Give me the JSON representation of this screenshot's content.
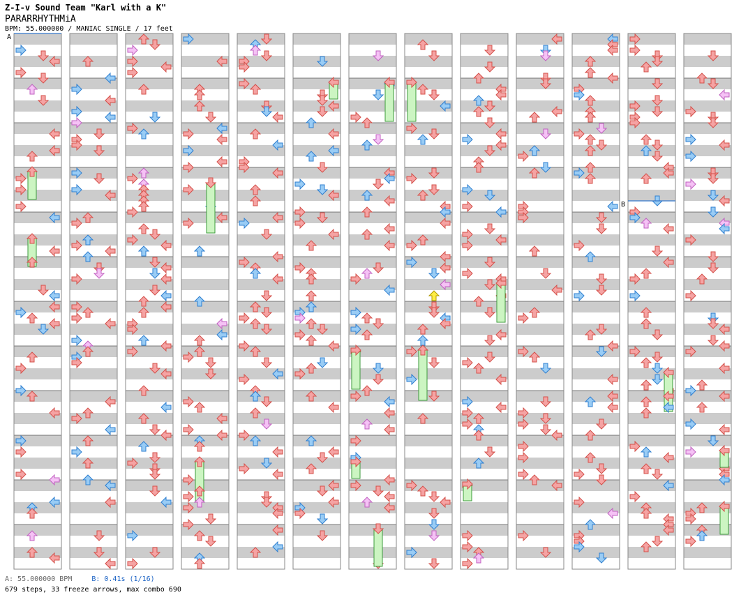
{
  "header": {
    "title": "Z-I-v Sound Team \"Karl with a K\"",
    "subtitle": "PARARRHYTHMiA",
    "info": "BPM: 55.000000 / MANIAC SINGLE / 17 feet"
  },
  "markers": [
    {
      "label": "A",
      "column": 1,
      "measure": 1,
      "position": 0
    },
    {
      "label": "B",
      "column": 12,
      "measure": 4,
      "position": 0.75
    }
  ],
  "footer": {
    "bpm_a": "A: 55.000000 BPM",
    "bpm_b": "B: 0.41s (1/16)",
    "stats": "679 steps, 33 freeze arrows, max combo 690"
  },
  "colors": {
    "stripe": "#cccccc",
    "panel_border": "#888888",
    "arrow_red": "#f5a3a3",
    "arrow_red_stroke": "#d4504a",
    "arrow_blue": "#99ccf5",
    "arrow_blue_stroke": "#2f7fd0",
    "arrow_pink": "#f5c2f5",
    "arrow_yellow": "#ffee44",
    "freeze_fill": "#ccf5c2",
    "freeze_stroke": "#3b9a3b",
    "marker_line": "#3377cc"
  },
  "chart_data": {
    "type": "step-chart",
    "columns": 13,
    "measures_per_column": 12,
    "lanes": [
      "left",
      "down",
      "up",
      "right"
    ],
    "total_steps": 679,
    "freeze_arrows": 33,
    "max_combo": 690,
    "bpm": 55.0
  }
}
